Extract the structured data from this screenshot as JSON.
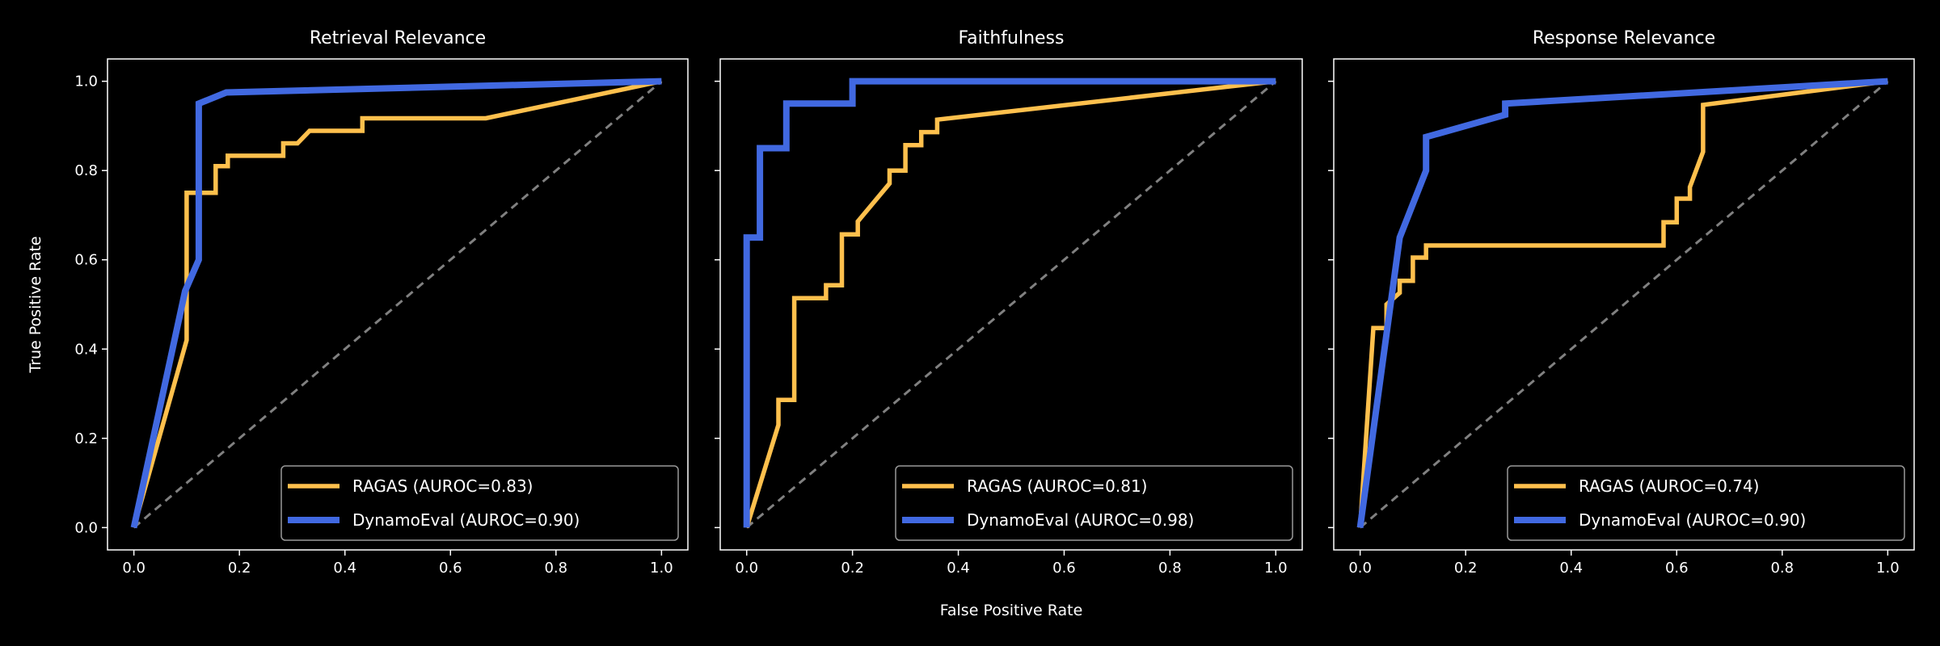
{
  "colors": {
    "ragas": "#FFC04D",
    "dynamoeval": "#4169E1",
    "diagonal": "#808080",
    "background": "#000000",
    "foreground": "#FFFFFF"
  },
  "chart_data": [
    {
      "type": "line",
      "title": "Retrieval Relevance",
      "xlabel": "",
      "ylabel": "True Positive Rate",
      "xlim": [
        -0.05,
        1.05
      ],
      "ylim": [
        -0.05,
        1.05
      ],
      "xticks": [
        "0.0",
        "0.2",
        "0.4",
        "0.6",
        "0.8",
        "1.0"
      ],
      "yticks": [
        "0.0",
        "0.2",
        "0.4",
        "0.6",
        "0.8",
        "1.0"
      ],
      "legend_position": "lower right",
      "series": [
        {
          "name": "RAGAS (AUROC=0.83)",
          "color_key": "ragas",
          "x": [
            0,
            0.1,
            0.1,
            0.155,
            0.155,
            0.178,
            0.178,
            0.283,
            0.283,
            0.31,
            0.333,
            0.433,
            0.433,
            0.667,
            1
          ],
          "y": [
            0,
            0.42,
            0.75,
            0.75,
            0.81,
            0.81,
            0.833,
            0.833,
            0.861,
            0.861,
            0.889,
            0.889,
            0.917,
            0.917,
            1
          ]
        },
        {
          "name": "DynamoEval (AUROC=0.90)",
          "color_key": "dynamoeval",
          "x": [
            0,
            0.097,
            0.123,
            0.123,
            0.175,
            1
          ],
          "y": [
            0,
            0.53,
            0.6,
            0.95,
            0.975,
            1
          ]
        }
      ]
    },
    {
      "type": "line",
      "title": "Faithfulness",
      "xlabel": "False Positive Rate",
      "ylabel": "",
      "xlim": [
        -0.05,
        1.05
      ],
      "ylim": [
        -0.05,
        1.05
      ],
      "xticks": [
        "0.0",
        "0.2",
        "0.4",
        "0.6",
        "0.8",
        "1.0"
      ],
      "yticks": [],
      "legend_position": "lower right",
      "series": [
        {
          "name": "RAGAS (AUROC=0.81)",
          "color_key": "ragas",
          "x": [
            0,
            0.06,
            0.06,
            0.09,
            0.09,
            0.15,
            0.15,
            0.18,
            0.18,
            0.21,
            0.21,
            0.27,
            0.27,
            0.3,
            0.3,
            0.33,
            0.33,
            0.36,
            0.36,
            1
          ],
          "y": [
            0,
            0.23,
            0.286,
            0.286,
            0.514,
            0.514,
            0.543,
            0.543,
            0.657,
            0.657,
            0.686,
            0.771,
            0.8,
            0.8,
            0.857,
            0.857,
            0.886,
            0.886,
            0.914,
            1
          ]
        },
        {
          "name": "DynamoEval (AUROC=0.98)",
          "color_key": "dynamoeval",
          "x": [
            0,
            0,
            0.025,
            0.025,
            0.075,
            0.075,
            0.2,
            0.2,
            1
          ],
          "y": [
            0,
            0.65,
            0.65,
            0.85,
            0.85,
            0.95,
            0.95,
            1,
            1
          ]
        }
      ]
    },
    {
      "type": "line",
      "title": "Response Relevance",
      "xlabel": "",
      "ylabel": "",
      "xlim": [
        -0.05,
        1.05
      ],
      "ylim": [
        -0.05,
        1.05
      ],
      "xticks": [
        "0.0",
        "0.2",
        "0.4",
        "0.6",
        "0.8",
        "1.0"
      ],
      "yticks": [],
      "legend_position": "lower right",
      "series": [
        {
          "name": "RAGAS (AUROC=0.74)",
          "color_key": "ragas",
          "x": [
            0,
            0.025,
            0.05,
            0.05,
            0.075,
            0.075,
            0.1,
            0.1,
            0.125,
            0.125,
            0.575,
            0.575,
            0.6,
            0.6,
            0.625,
            0.625,
            0.65,
            0.65,
            1
          ],
          "y": [
            0,
            0.447,
            0.447,
            0.5,
            0.526,
            0.553,
            0.553,
            0.605,
            0.605,
            0.632,
            0.632,
            0.684,
            0.684,
            0.737,
            0.737,
            0.763,
            0.842,
            0.947,
            1
          ]
        },
        {
          "name": "DynamoEval (AUROC=0.90)",
          "color_key": "dynamoeval",
          "x": [
            0,
            0.075,
            0.125,
            0.125,
            0.275,
            0.275,
            1
          ],
          "y": [
            0,
            0.65,
            0.8,
            0.875,
            0.925,
            0.95,
            1
          ]
        }
      ]
    }
  ]
}
